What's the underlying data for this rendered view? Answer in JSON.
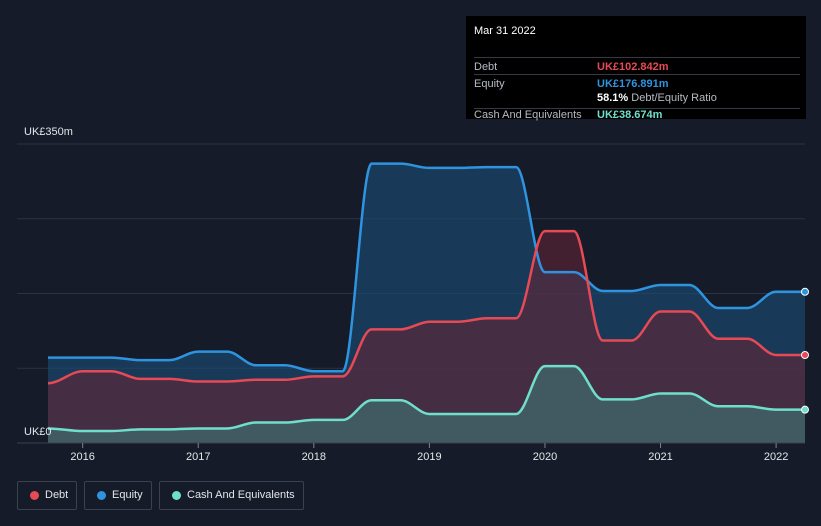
{
  "tooltip": {
    "date": "Mar 31 2022",
    "debt_label": "Debt",
    "debt_value": "UK£102.842m",
    "equity_label": "Equity",
    "equity_value": "UK£176.891m",
    "ratio_value": "58.1%",
    "ratio_text": "Debt/Equity Ratio",
    "cash_label": "Cash And Equivalents",
    "cash_value": "UK£38.674m"
  },
  "legend": {
    "debt": "Debt",
    "equity": "Equity",
    "cash": "Cash And Equivalents"
  },
  "colors": {
    "background": "#151b28",
    "debt": "#e64a55",
    "equity": "#2f94e0",
    "cash": "#6fdfcb"
  },
  "chart_data": {
    "type": "area",
    "y_top_label": "UK£350m",
    "y_bottom_label": "UK£0",
    "ylim": [
      0,
      350
    ],
    "xlim": [
      2015.7,
      2022.25
    ],
    "x_ticks": [
      "2016",
      "2017",
      "2018",
      "2019",
      "2020",
      "2021",
      "2022"
    ],
    "x_tick_values": [
      2016,
      2017,
      2018,
      2019,
      2020,
      2021,
      2022
    ],
    "grid": true,
    "legend_position": "bottom-left",
    "series": [
      {
        "name": "Equity",
        "key": "equity",
        "points": [
          [
            2015.7,
            100
          ],
          [
            2016.25,
            100
          ],
          [
            2016.5,
            97
          ],
          [
            2016.75,
            97
          ],
          [
            2017.0,
            107
          ],
          [
            2017.25,
            107
          ],
          [
            2017.5,
            91
          ],
          [
            2017.75,
            91
          ],
          [
            2018.0,
            84
          ],
          [
            2018.25,
            84
          ],
          [
            2018.5,
            327
          ],
          [
            2018.75,
            327
          ],
          [
            2019.0,
            322
          ],
          [
            2019.25,
            322
          ],
          [
            2019.5,
            323
          ],
          [
            2019.75,
            323
          ],
          [
            2020.0,
            200
          ],
          [
            2020.25,
            200
          ],
          [
            2020.5,
            178
          ],
          [
            2020.75,
            178
          ],
          [
            2021.0,
            185
          ],
          [
            2021.25,
            185
          ],
          [
            2021.5,
            158
          ],
          [
            2021.75,
            158
          ],
          [
            2022.0,
            177
          ],
          [
            2022.25,
            177
          ]
        ]
      },
      {
        "name": "Debt",
        "key": "debt",
        "points": [
          [
            2015.7,
            70
          ],
          [
            2016.0,
            84
          ],
          [
            2016.25,
            84
          ],
          [
            2016.5,
            75
          ],
          [
            2016.75,
            75
          ],
          [
            2017.0,
            72
          ],
          [
            2017.25,
            72
          ],
          [
            2017.5,
            74
          ],
          [
            2017.75,
            74
          ],
          [
            2018.0,
            78
          ],
          [
            2018.25,
            78
          ],
          [
            2018.5,
            133
          ],
          [
            2018.75,
            133
          ],
          [
            2019.0,
            142
          ],
          [
            2019.25,
            142
          ],
          [
            2019.5,
            146
          ],
          [
            2019.75,
            146
          ],
          [
            2020.0,
            248
          ],
          [
            2020.25,
            248
          ],
          [
            2020.5,
            120
          ],
          [
            2020.75,
            120
          ],
          [
            2021.0,
            154
          ],
          [
            2021.25,
            154
          ],
          [
            2021.5,
            122
          ],
          [
            2021.75,
            122
          ],
          [
            2022.0,
            103
          ],
          [
            2022.25,
            103
          ]
        ]
      },
      {
        "name": "Cash And Equivalents",
        "key": "cash",
        "points": [
          [
            2015.7,
            17
          ],
          [
            2016.0,
            14
          ],
          [
            2016.25,
            14
          ],
          [
            2016.5,
            16
          ],
          [
            2016.75,
            16
          ],
          [
            2017.0,
            17
          ],
          [
            2017.25,
            17
          ],
          [
            2017.5,
            24
          ],
          [
            2017.75,
            24
          ],
          [
            2018.0,
            27
          ],
          [
            2018.25,
            27
          ],
          [
            2018.5,
            50
          ],
          [
            2018.75,
            50
          ],
          [
            2019.0,
            34
          ],
          [
            2019.25,
            34
          ],
          [
            2019.5,
            34
          ],
          [
            2019.75,
            34
          ],
          [
            2020.0,
            90
          ],
          [
            2020.25,
            90
          ],
          [
            2020.5,
            51
          ],
          [
            2020.75,
            51
          ],
          [
            2021.0,
            58
          ],
          [
            2021.25,
            58
          ],
          [
            2021.5,
            43
          ],
          [
            2021.75,
            43
          ],
          [
            2022.0,
            39
          ],
          [
            2022.25,
            39
          ]
        ]
      }
    ]
  }
}
